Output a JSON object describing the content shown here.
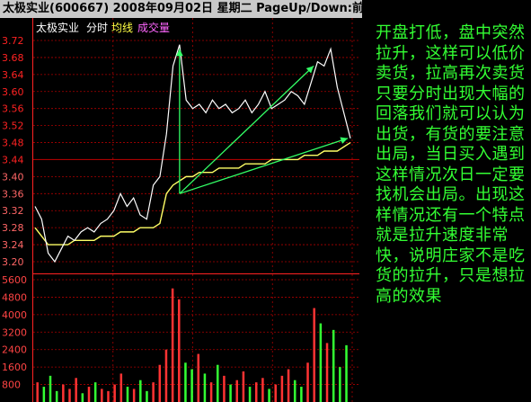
{
  "window": {
    "title": "太极实业(600667) 2008年09月02日 星期二 PageUp/Down:前"
  },
  "legend": {
    "name": "太极实业",
    "time_label": "分时",
    "avg_label": "均线",
    "vol_label": "成交量"
  },
  "colors": {
    "price": "#ffffff",
    "avg": "#ffff66",
    "grid": "#aa0000",
    "axis": "#ff2222",
    "up": "#ff3333",
    "down": "#33ff33",
    "arrow": "#33ff66",
    "note": "#33ff33"
  },
  "chart_data": [
    {
      "type": "line",
      "y_ticks": [
        "3.72",
        "3.68",
        "3.64",
        "3.60",
        "3.56",
        "3.52",
        "3.48",
        "3.44",
        "3.40",
        "3.36",
        "3.32",
        "3.28",
        "3.24",
        "3.20"
      ],
      "ylim": [
        3.18,
        3.73
      ],
      "x": [
        0,
        5,
        10,
        15,
        20,
        25,
        30,
        35,
        40,
        45,
        50,
        55,
        60,
        65,
        70,
        75,
        80,
        85,
        90,
        95,
        100,
        105,
        110,
        115,
        120,
        125,
        130,
        135,
        140,
        145,
        150,
        155,
        160,
        165,
        170,
        175,
        180,
        185,
        190,
        195,
        200,
        205,
        210,
        215,
        220,
        225,
        230,
        235,
        240
      ],
      "series": [
        {
          "values": [
            3.33,
            3.3,
            3.22,
            3.2,
            3.23,
            3.26,
            3.25,
            3.27,
            3.28,
            3.27,
            3.29,
            3.3,
            3.32,
            3.36,
            3.33,
            3.35,
            3.31,
            3.3,
            3.38,
            3.4,
            3.5,
            3.66,
            3.71,
            3.58,
            3.56,
            3.57,
            3.55,
            3.58,
            3.56,
            3.57,
            3.55,
            3.56,
            3.58,
            3.55,
            3.57,
            3.6,
            3.56,
            3.57,
            3.58,
            3.6,
            3.59,
            3.57,
            3.62,
            3.67,
            3.66,
            3.7,
            3.61,
            3.55,
            3.49
          ]
        },
        {
          "values": [
            3.28,
            3.26,
            3.24,
            3.24,
            3.24,
            3.24,
            3.25,
            3.25,
            3.25,
            3.25,
            3.26,
            3.26,
            3.26,
            3.27,
            3.27,
            3.27,
            3.28,
            3.28,
            3.28,
            3.29,
            3.36,
            3.38,
            3.39,
            3.4,
            3.4,
            3.41,
            3.41,
            3.41,
            3.42,
            3.42,
            3.42,
            3.42,
            3.43,
            3.43,
            3.43,
            3.43,
            3.44,
            3.44,
            3.44,
            3.44,
            3.44,
            3.45,
            3.45,
            3.45,
            3.46,
            3.46,
            3.46,
            3.47,
            3.48
          ]
        }
      ]
    },
    {
      "type": "bar",
      "y_ticks": [
        "5600",
        "4800",
        "4000",
        "3200",
        "2400",
        "1600",
        "800"
      ],
      "ylim": [
        0,
        5600
      ],
      "values": [
        900,
        700,
        1200,
        500,
        800,
        600,
        1100,
        400,
        700,
        900,
        600,
        500,
        800,
        1300,
        700,
        600,
        1000,
        500,
        900,
        1700,
        2400,
        5200,
        4700,
        1800,
        1500,
        2200,
        1300,
        900,
        1700,
        1200,
        800,
        1000,
        1400,
        700,
        900,
        1100,
        600,
        800,
        1200,
        1500,
        1000,
        700,
        1800,
        4300,
        3600,
        2700,
        3300,
        1600,
        2600
      ],
      "up": [
        true,
        false,
        false,
        false,
        true,
        true,
        true,
        false,
        true,
        false,
        true,
        true,
        true,
        true,
        false,
        true,
        false,
        false,
        true,
        true,
        true,
        true,
        true,
        false,
        false,
        true,
        false,
        true,
        false,
        true,
        false,
        true,
        true,
        false,
        true,
        true,
        false,
        true,
        true,
        true,
        false,
        false,
        true,
        true,
        false,
        true,
        false,
        false,
        false
      ]
    }
  ],
  "note": {
    "text": "开盘打低，盘中突然拉升，这样可以低价卖货，拉高再次卖货只要分时出现大幅的回落我们就可以认为出货，有货的要注意出局，当日买入遇到这样情况次日一定要找机会出局。出现这样情况还有一个特点就是拉升速度非常快，说明庄家不是吃货的拉升，只是想拉高的效果"
  }
}
